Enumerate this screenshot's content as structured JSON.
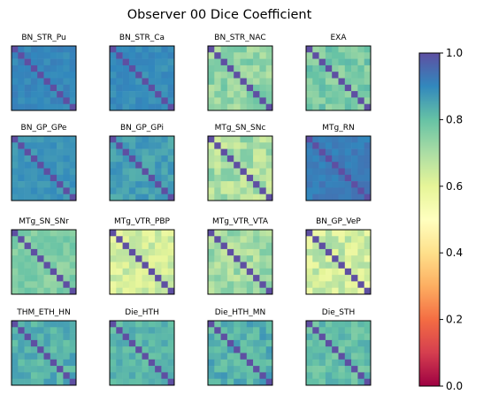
{
  "chart_data": {
    "type": "heatmap",
    "title": "Observer 00 Dice Coefficient",
    "colormap": "Spectral",
    "colorbar": {
      "range": [
        0.0,
        1.0
      ],
      "ticks": [
        "0.0",
        "0.2",
        "0.4",
        "0.6",
        "0.8",
        "1.0"
      ]
    },
    "grid": false,
    "matrix_size": 10,
    "diagonal_value": 1.0,
    "panels": [
      {
        "title": "BN_STR_Pu",
        "base": 0.9,
        "spread": 0.02
      },
      {
        "title": "BN_STR_Ca",
        "base": 0.89,
        "spread": 0.02
      },
      {
        "title": "BN_STR_NAC",
        "base": 0.74,
        "spread": 0.06
      },
      {
        "title": "EXA",
        "base": 0.77,
        "spread": 0.05
      },
      {
        "title": "BN_GP_GPe",
        "base": 0.88,
        "spread": 0.02
      },
      {
        "title": "BN_GP_GPi",
        "base": 0.86,
        "spread": 0.03
      },
      {
        "title": "MTg_SN_SNc",
        "base": 0.7,
        "spread": 0.07
      },
      {
        "title": "MTg_RN",
        "base": 0.92,
        "spread": 0.02
      },
      {
        "title": "MTg_SN_SNr",
        "base": 0.76,
        "spread": 0.04
      },
      {
        "title": "MTg_VTR_PBP",
        "base": 0.63,
        "spread": 0.06
      },
      {
        "title": "MTg_VTR_VTA",
        "base": 0.71,
        "spread": 0.06
      },
      {
        "title": "BN_GP_VeP",
        "base": 0.64,
        "spread": 0.08
      },
      {
        "title": "THM_ETH_HN",
        "base": 0.83,
        "spread": 0.04
      },
      {
        "title": "Die_HTH",
        "base": 0.82,
        "spread": 0.03
      },
      {
        "title": "Die_HTH_MN",
        "base": 0.83,
        "spread": 0.05
      },
      {
        "title": "Die_STH",
        "base": 0.8,
        "spread": 0.04
      }
    ]
  }
}
